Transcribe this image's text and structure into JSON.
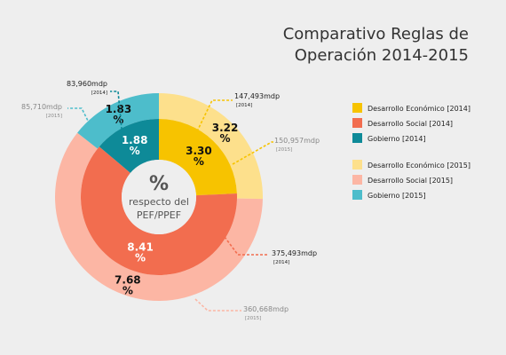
{
  "title": [
    "Comparativo Reglas de",
    "Operación 2014-2015"
  ],
  "center": {
    "symbol": "%",
    "line1": "respecto del",
    "line2": "PEF/PPEF"
  },
  "percent_symbol": "%",
  "chart_data": {
    "type": "pie",
    "rings": [
      {
        "name": "2015",
        "radius": "outer",
        "slices": [
          {
            "category": "Desarrollo Económico [2015]",
            "value": 3.22,
            "label": "3.22",
            "amount": "150,957mdp",
            "year_note": "[2015]",
            "color": "#fde08c"
          },
          {
            "category": "Desarrollo Social [2015]",
            "value": 7.68,
            "label": "7.68",
            "amount": "360,668mdp",
            "year_note": "[2015]",
            "color": "#fcb6a4"
          },
          {
            "category": "Gobierno [2015]",
            "value": 1.83,
            "label": "1.83",
            "amount": "85,710mdp",
            "year_note": "[2015]",
            "color": "#4dbdcb"
          }
        ]
      },
      {
        "name": "2014",
        "radius": "inner",
        "slices": [
          {
            "category": "Desarrollo Económico [2014]",
            "value": 3.3,
            "label": "3.30",
            "amount": "147,493mdp",
            "year_note": "[2014]",
            "color": "#f7c300"
          },
          {
            "category": "Desarrollo Social [2014]",
            "value": 8.41,
            "label": "8.41",
            "amount": "375,493mdp",
            "year_note": "[2014]",
            "color": "#f26d4f"
          },
          {
            "category": "Gobierno [2014]",
            "value": 1.88,
            "label": "1.88",
            "amount": "83,960mdp",
            "year_note": "[2014]",
            "color": "#0e8a98"
          }
        ]
      }
    ],
    "legend": [
      {
        "label": "Desarrollo Económico [2014]",
        "color": "#f7c300"
      },
      {
        "label": "Desarrollo Social [2014]",
        "color": "#f26d4f"
      },
      {
        "label": "Gobierno [2014]",
        "color": "#0e8a98"
      },
      {
        "label": "Desarrollo Económico [2015]",
        "color": "#fde08c"
      },
      {
        "label": "Desarrollo Social [2015]",
        "color": "#fcb6a4"
      },
      {
        "label": "Gobierno [2015]",
        "color": "#4dbdcb"
      }
    ],
    "legend_position": "right"
  }
}
